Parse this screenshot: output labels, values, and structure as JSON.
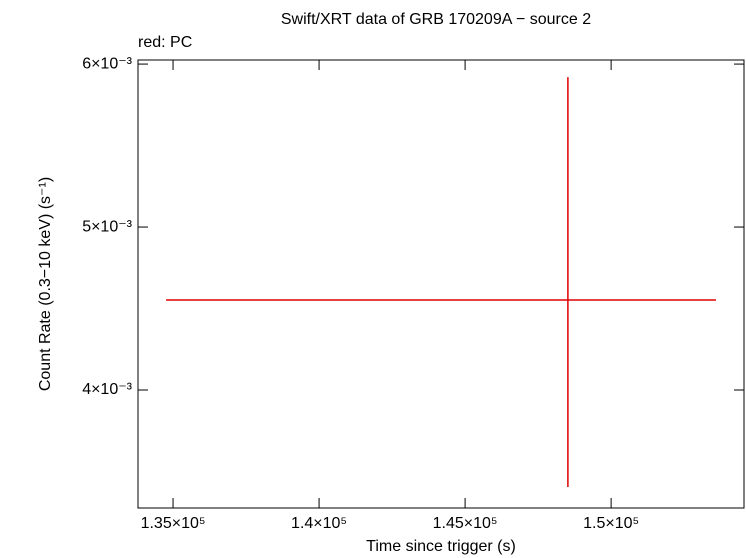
{
  "chart_data": {
    "type": "errorbar",
    "title": "Swift/XRT data of GRB 170209A − source 2",
    "subtitle": "red: PC",
    "x_label": "Time since trigger (s)",
    "y_label": "Count Rate (0.3−10 keV) (s⁻¹)",
    "series": [
      {
        "name": "PC",
        "color": "#e00000",
        "x": [
          148520
        ],
        "xerr_minus": [
          13760
        ],
        "xerr_plus": [
          5070
        ],
        "values": [
          0.004552
        ],
        "yerr_minus": [
          0.001147
        ],
        "yerr_plus": [
          0.001368
        ]
      }
    ],
    "xlim": [
      133800,
      154550
    ],
    "xticks": [
      {
        "value": 135000,
        "label": "1.35×10⁵"
      },
      {
        "value": 140000,
        "label": "1.4×10⁵"
      },
      {
        "value": 145000,
        "label": "1.45×10⁵"
      },
      {
        "value": 150000,
        "label": "1.5×10⁵"
      }
    ],
    "ylim": [
      0.003276,
      0.006025
    ],
    "yticks": [
      {
        "value": 0.004,
        "label": "4×10⁻³"
      },
      {
        "value": 0.005,
        "label": "5×10⁻³"
      },
      {
        "value": 0.006,
        "label": "6×10⁻³"
      }
    ]
  }
}
